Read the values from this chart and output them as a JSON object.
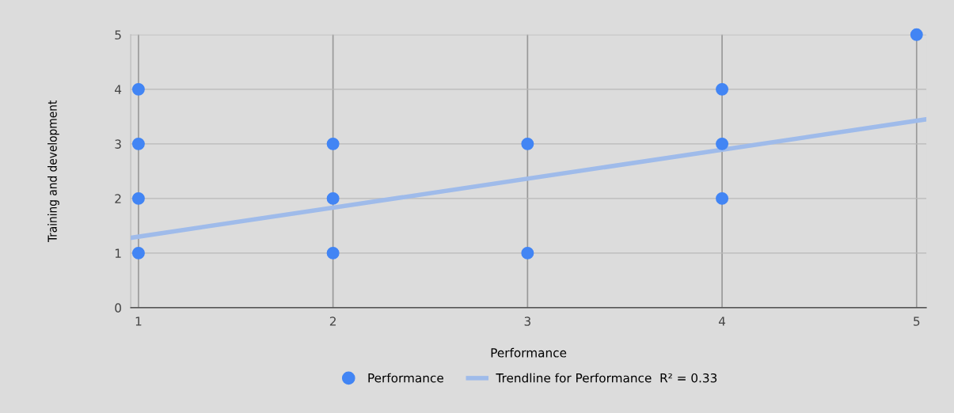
{
  "chart_data": {
    "type": "scatter",
    "xlabel": "Performance",
    "ylabel": "Training and development",
    "xlim": [
      0.96,
      5.05
    ],
    "xticks": [
      1,
      2,
      3,
      4,
      5
    ],
    "ylim": [
      0,
      5
    ],
    "yticks": [
      0,
      1,
      2,
      3,
      4,
      5
    ],
    "grid": true,
    "legend": "bottom",
    "series": [
      {
        "name": "Performance",
        "marker": "circle",
        "color": "#4285f4",
        "x": [
          1,
          1,
          1,
          1,
          2,
          2,
          2,
          3,
          3,
          4,
          4,
          4,
          5
        ],
        "values": [
          4,
          3,
          2,
          1,
          3,
          2,
          1,
          3,
          1,
          4,
          3,
          2,
          5
        ]
      },
      {
        "name": "Trendline for Performance  R² = 0.33",
        "type": "line",
        "marker": "none",
        "color": "#9fbbea",
        "x": [
          0.96,
          5.05
        ],
        "values": [
          1.28,
          3.45
        ]
      }
    ]
  }
}
